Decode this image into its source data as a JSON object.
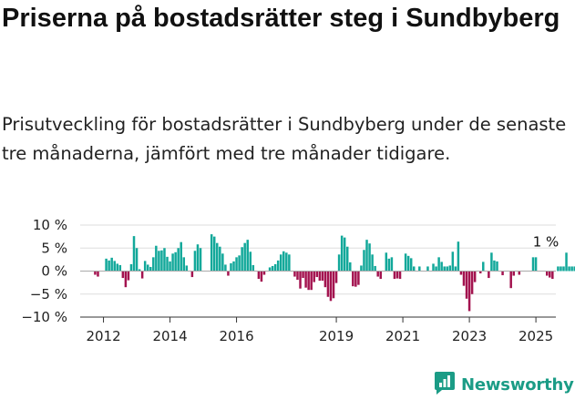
{
  "title": "Priserna på bostadsrätter steg i Sundbyberg",
  "subtitle": "Prisutveckling för bostadsrätter i Sundbyberg under de senaste tre månaderna, jämfört med tre månader tidigare.",
  "brand": {
    "name": "Newsworthy",
    "color": "#1b9c86"
  },
  "colors": {
    "positive": "#12a89a",
    "negative": "#a3134f",
    "grid": "#dddddd",
    "axis": "#333333"
  },
  "chart_data": {
    "type": "bar",
    "title": "Priserna på bostadsrätter steg i Sundbyberg",
    "ylabel": "",
    "xlabel": "",
    "ylim": [
      -10,
      10
    ],
    "xlim": [
      2011.3,
      2025.6
    ],
    "y_ticks": [
      10,
      5,
      0,
      -5,
      -10
    ],
    "y_tick_labels": [
      "10 %",
      "5 %",
      "0 %",
      "−5 %",
      "−10 %"
    ],
    "x_ticks": [
      2012,
      2014,
      2016,
      2019,
      2021,
      2023,
      2025
    ],
    "x_tick_labels": [
      "2012",
      "2014",
      "2016",
      "2019",
      "2021",
      "2023",
      "2025"
    ],
    "grid": true,
    "annotation": {
      "text": "1 %",
      "x": 2025.3,
      "y": 1
    },
    "x_start": 2011.75,
    "x_step": 0.08333,
    "values": [
      -0.8,
      -1.2,
      0,
      0,
      2.7,
      2.3,
      2.9,
      2.2,
      1.6,
      1.3,
      -1.5,
      -3.5,
      -2,
      1.5,
      7.6,
      5,
      0.4,
      -1.6,
      2.2,
      1.4,
      0.9,
      3,
      5.5,
      4.4,
      4.5,
      5,
      3.1,
      2.1,
      3.8,
      4.1,
      5,
      6.3,
      3,
      1.2,
      0,
      -1.3,
      4.4,
      5.8,
      5,
      0,
      0,
      0,
      8,
      7.5,
      6.1,
      5.3,
      3.8,
      1.4,
      -1,
      1.7,
      2.1,
      3,
      3.4,
      5.2,
      6.1,
      6.8,
      4.2,
      1.3,
      0,
      -1.7,
      -2.3,
      -0.8,
      0,
      0.8,
      1.1,
      1.5,
      2.3,
      3.6,
      4.3,
      4,
      3.6,
      0,
      -1.2,
      -1.9,
      -3.8,
      -1.5,
      -3.6,
      -4.1,
      -4.1,
      -2.4,
      -1.3,
      -2.1,
      -2.1,
      -3.5,
      -5.6,
      -6.5,
      -5.9,
      -2.6,
      3.6,
      7.7,
      7.3,
      5.3,
      1.9,
      -3.3,
      -3.4,
      -3,
      1.2,
      4.6,
      6.8,
      6,
      3.6,
      1.1,
      -1.2,
      -1.7,
      0,
      4,
      2.7,
      3,
      -1.7,
      -1.6,
      -1.7,
      0,
      3.8,
      3.3,
      2.8,
      1,
      0,
      1,
      0,
      0,
      1,
      0,
      1.6,
      1,
      3,
      2,
      1,
      1,
      1.2,
      4.2,
      1,
      6.4,
      -0.8,
      -3.2,
      -6,
      -8.7,
      -5,
      -2.4,
      0,
      -0.5,
      2,
      0,
      -1.5,
      4,
      2.3,
      2.1,
      0,
      -0.9,
      0,
      0,
      -3.7,
      -1,
      0,
      -0.8,
      0,
      0,
      0,
      0,
      3,
      3,
      0,
      0,
      0,
      -1,
      -1.4,
      -1.7,
      0,
      1,
      1,
      1,
      4,
      1,
      1,
      1
    ]
  }
}
